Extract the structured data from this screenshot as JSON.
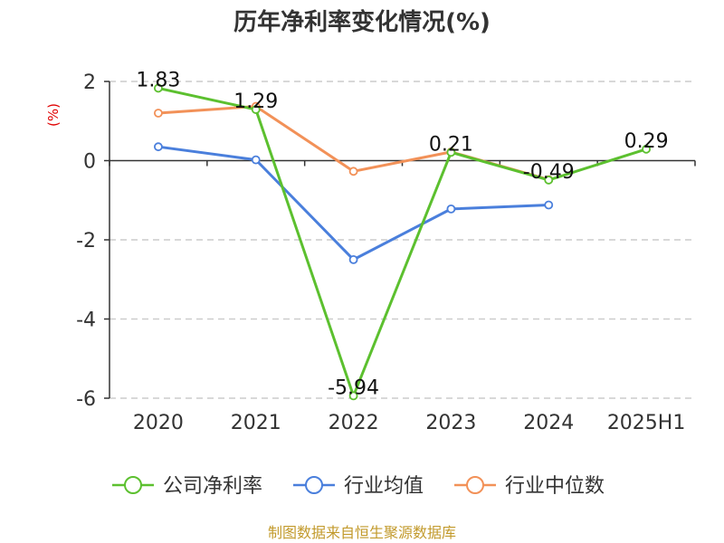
{
  "chart_data": {
    "type": "line",
    "title": "历年净利率变化情况(%)",
    "ylabel": "(%)",
    "xlabel": "",
    "categories": [
      "2020",
      "2021",
      "2022",
      "2023",
      "2024",
      "2025H1"
    ],
    "ylim": [
      -6,
      2
    ],
    "yticks": [
      2,
      0,
      -2,
      -4,
      -6
    ],
    "grid": true,
    "legend_position": "bottom",
    "series": [
      {
        "name": "公司净利率",
        "values": [
          1.83,
          1.29,
          -5.94,
          0.21,
          -0.49,
          0.29
        ],
        "labels": [
          "1.83",
          "1.29",
          "-5.94",
          "0.21",
          "-0.49",
          "0.29"
        ],
        "color": "#5cc02f"
      },
      {
        "name": "行业均值",
        "values": [
          0.35,
          0.02,
          -2.5,
          -1.22,
          -1.12,
          null
        ],
        "color": "#4a7fdc"
      },
      {
        "name": "行业中位数",
        "values": [
          1.2,
          1.37,
          -0.27,
          0.22,
          -0.48,
          null
        ],
        "color": "#f29158"
      }
    ]
  },
  "source": "制图数据来自恒生聚源数据库"
}
